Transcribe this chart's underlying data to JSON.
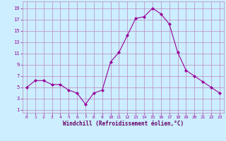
{
  "x": [
    0,
    1,
    2,
    3,
    4,
    5,
    6,
    7,
    8,
    9,
    10,
    11,
    12,
    13,
    14,
    15,
    16,
    17,
    18,
    19,
    20,
    21,
    22,
    23
  ],
  "y": [
    5,
    6.2,
    6.2,
    5.5,
    5.5,
    4.5,
    4.0,
    2.0,
    4.0,
    4.5,
    9.5,
    11.2,
    14.2,
    17.2,
    17.5,
    19.0,
    18.0,
    16.2,
    11.2,
    8.0,
    7.0,
    6.0,
    5.0,
    4.0
  ],
  "line_color": "#990099",
  "marker": "D",
  "marker_size": 2,
  "bg_color": "#cceeff",
  "grid_color": "#bb88bb",
  "xlabel": "Windchill (Refroidissement éolien,°C)",
  "xlabel_color": "#660066",
  "yticks": [
    1,
    3,
    5,
    7,
    9,
    11,
    13,
    15,
    17,
    19
  ],
  "xticks": [
    0,
    1,
    2,
    3,
    4,
    5,
    6,
    7,
    8,
    9,
    10,
    11,
    12,
    13,
    14,
    15,
    16,
    17,
    18,
    19,
    20,
    21,
    22,
    23
  ],
  "xlim": [
    -0.5,
    23.5
  ],
  "ylim": [
    0.5,
    20.2
  ]
}
